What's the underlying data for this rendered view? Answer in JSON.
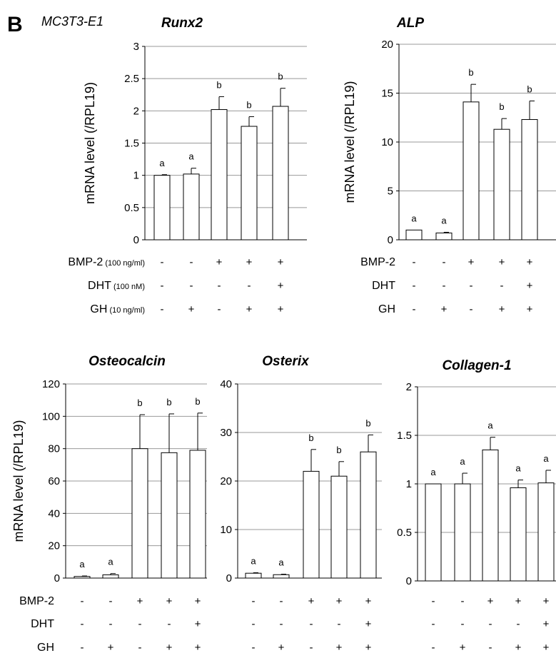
{
  "figure": {
    "panel_letter": "B",
    "cell_line": "MC3T3-E1",
    "ylabel": "mRNA level (/RPL19)"
  },
  "treatments": {
    "top": [
      {
        "name": "BMP-2",
        "unit": "(100 ng/ml)",
        "signs": [
          "-",
          "-",
          "+",
          "+",
          "+"
        ]
      },
      {
        "name": "DHT",
        "unit": "(100 nM)",
        "signs": [
          "-",
          "-",
          "-",
          "-",
          "+"
        ]
      },
      {
        "name": "GH",
        "unit": "(10 ng/ml)",
        "signs": [
          "-",
          "+",
          "-",
          "+",
          "+"
        ]
      }
    ],
    "bottom": [
      {
        "name": "BMP-2",
        "signs": [
          "-",
          "-",
          "+",
          "+",
          "+"
        ]
      },
      {
        "name": "DHT",
        "signs": [
          "-",
          "-",
          "-",
          "-",
          "+"
        ]
      },
      {
        "name": "GH",
        "signs": [
          "-",
          "+",
          "-",
          "+",
          "+"
        ]
      }
    ]
  },
  "colors": {
    "bar_fill": "#ffffff",
    "stroke": "#000000",
    "grid": "#999999"
  },
  "chart_data": [
    {
      "type": "bar",
      "title": "Runx2",
      "ylabel": "mRNA level (/RPL19)",
      "ylim": [
        0,
        3
      ],
      "yticks": [
        0,
        0.5,
        1,
        1.5,
        2,
        2.5,
        3
      ],
      "ytick_labels": [
        "0",
        "0.5",
        "1",
        "1.5",
        "2",
        "2.5",
        "3"
      ],
      "values": [
        1.0,
        1.02,
        2.02,
        1.76,
        2.07
      ],
      "errors": [
        0.01,
        0.09,
        0.2,
        0.15,
        0.28
      ],
      "sig": [
        "a",
        "a",
        "b",
        "b",
        "b"
      ],
      "grid": true
    },
    {
      "type": "bar",
      "title": "ALP",
      "ylabel": "mRNA level (/RPL19)",
      "ylim": [
        0,
        20
      ],
      "yticks": [
        0,
        5,
        10,
        15,
        20
      ],
      "ytick_labels": [
        "0",
        "5",
        "10",
        "15",
        "20"
      ],
      "values": [
        1.0,
        0.7,
        14.1,
        11.3,
        12.3
      ],
      "errors": [
        0.0,
        0.07,
        1.8,
        1.1,
        1.9
      ],
      "sig": [
        "a",
        "a",
        "b",
        "b",
        "b"
      ],
      "grid": true
    },
    {
      "type": "bar",
      "title": "Osteocalcin",
      "ylabel": "mRNA level (/RPL19)",
      "ylim": [
        0,
        120
      ],
      "yticks": [
        0,
        20,
        40,
        60,
        80,
        100,
        120
      ],
      "ytick_labels": [
        "0",
        "20",
        "40",
        "60",
        "80",
        "100",
        "120"
      ],
      "values": [
        1.0,
        2.0,
        80.0,
        77.5,
        79.0
      ],
      "errors": [
        0.3,
        0.8,
        21.0,
        24.0,
        23.0
      ],
      "sig": [
        "a",
        "a",
        "b",
        "b",
        "b"
      ],
      "grid": true
    },
    {
      "type": "bar",
      "title": "Osterix",
      "ylabel": "",
      "ylim": [
        0,
        40
      ],
      "yticks": [
        0,
        10,
        20,
        30,
        40
      ],
      "ytick_labels": [
        "0",
        "10",
        "20",
        "30",
        "40"
      ],
      "values": [
        1.0,
        0.7,
        22.0,
        21.0,
        26.0
      ],
      "errors": [
        0.1,
        0.1,
        4.5,
        3.0,
        3.5
      ],
      "sig": [
        "a",
        "a",
        "b",
        "b",
        "b"
      ],
      "grid": true
    },
    {
      "type": "bar",
      "title": "Collagen-1",
      "ylabel": "",
      "ylim": [
        0,
        2
      ],
      "yticks": [
        0,
        0.5,
        1,
        1.5,
        2
      ],
      "ytick_labels": [
        "0",
        "0.5",
        "1",
        "1.5",
        "2"
      ],
      "values": [
        1.0,
        1.0,
        1.35,
        0.96,
        1.01
      ],
      "errors": [
        0.0,
        0.11,
        0.13,
        0.08,
        0.13
      ],
      "sig": [
        "a",
        "a",
        "a",
        "a",
        "a"
      ],
      "grid": true
    }
  ]
}
